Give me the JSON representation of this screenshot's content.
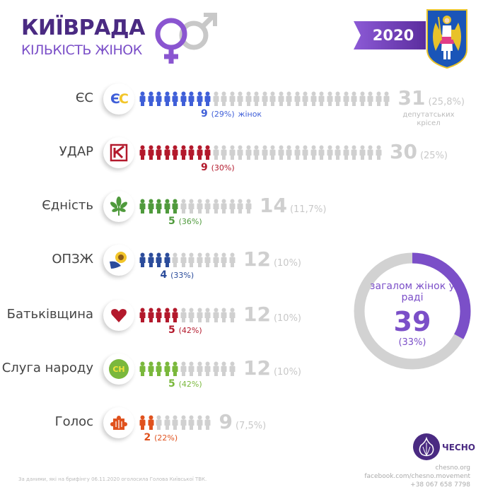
{
  "header": {
    "title": "КИЇВРАДА",
    "subtitle": "КІЛЬКІСТЬ ЖІНОК",
    "year": "2020"
  },
  "colors": {
    "purple": "#7b4fc8",
    "dark_purple": "#4a2a82",
    "inactive": "#d0d0d0"
  },
  "chart_data": {
    "type": "pictogram",
    "rows": [
      {
        "party": "ЄС",
        "logo": "ЄС",
        "seats": 31,
        "seat_share": "(25,8%)",
        "women": 9,
        "women_share": "(29%)",
        "women_suffix": "жінок",
        "seats_suffix": "депутатських крісел",
        "color": "#3f5fd8"
      },
      {
        "party": "УДАР",
        "logo": "K",
        "seats": 30,
        "seat_share": "(25%)",
        "women": 9,
        "women_share": "(30%)",
        "color": "#b3192c"
      },
      {
        "party": "Єдність",
        "logo": "leaf",
        "seats": 14,
        "seat_share": "(11,7%)",
        "women": 5,
        "women_share": "(36%)",
        "color": "#4f9a3c"
      },
      {
        "party": "ОПЗЖ",
        "logo": "sunflower",
        "seats": 12,
        "seat_share": "(10%)",
        "women": 4,
        "women_share": "(33%)",
        "color": "#2b4c9b"
      },
      {
        "party": "Батьківщина",
        "logo": "heart",
        "seats": 12,
        "seat_share": "(10%)",
        "women": 5,
        "women_share": "(42%)",
        "color": "#b3192c"
      },
      {
        "party": "Слуга народу",
        "logo": "СН",
        "seats": 12,
        "seat_share": "(10%)",
        "women": 5,
        "women_share": "(42%)",
        "color": "#7ab83c"
      },
      {
        "party": "Голос",
        "logo": "puzzle",
        "seats": 9,
        "seat_share": "(7,5%)",
        "women": 2,
        "women_share": "(22%)",
        "color": "#e0521e"
      }
    ],
    "summary": {
      "label": "загалом жінок у раді",
      "value": 39,
      "share": "(33%)",
      "fraction": 0.33
    }
  },
  "footer": {
    "brand": "ЧЕСНО",
    "site": "chesno.org",
    "facebook": "facebook.com/chesno.movement",
    "phone": "+38 067 658 7798",
    "source": "За даними, які на брифінгу 06.11.2020 оголосила Голова Київської ТВК."
  }
}
